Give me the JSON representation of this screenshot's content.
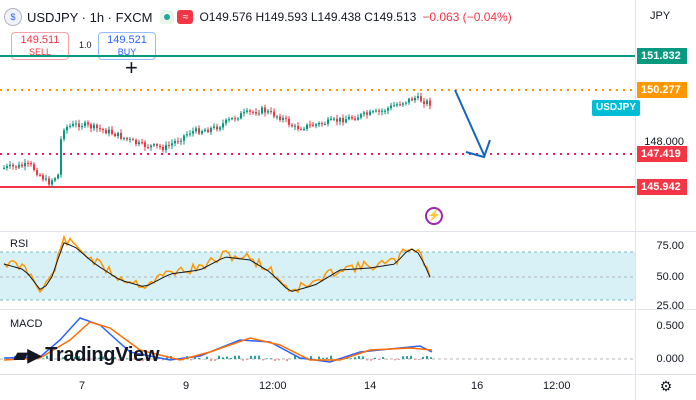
{
  "header": {
    "symbol_line": "USDJPY · 1h · FXCM",
    "ohlc": "O149.576 H149.593 L149.438 C149.513",
    "change": "−0.063 (−0.04%)",
    "currency": "JPY"
  },
  "trade": {
    "sell_price": "149.511",
    "sell_label": "SELL",
    "spread": "1.0",
    "buy_price": "149.521",
    "buy_label": "BUY"
  },
  "price_axis": {
    "levels": [
      "151.832",
      "150.277",
      "148.000",
      "147.419",
      "145.942"
    ],
    "symbol_tag": "USDJPY"
  },
  "rsi": {
    "title": "RSI",
    "ticks": [
      "75.00",
      "50.00",
      "25.00"
    ]
  },
  "macd": {
    "title": "MACD",
    "ticks": [
      "0.500",
      "0.000"
    ]
  },
  "time_axis": [
    "7",
    "9",
    "12:00",
    "14",
    "16",
    "12:00"
  ],
  "branding": {
    "logo_text": "TradingView"
  },
  "colors": {
    "resistance_green": "#089981",
    "target_orange": "#ff9800",
    "support_pink": "#e91e63",
    "support_red": "#f23645",
    "rsi_line": "#ff9800",
    "rsi_band": "#d8f1f6",
    "arrow_blue": "#1565c0"
  },
  "icons": [
    "settings-gear-icon",
    "crosshair-icon",
    "lightning-event-icon"
  ]
}
